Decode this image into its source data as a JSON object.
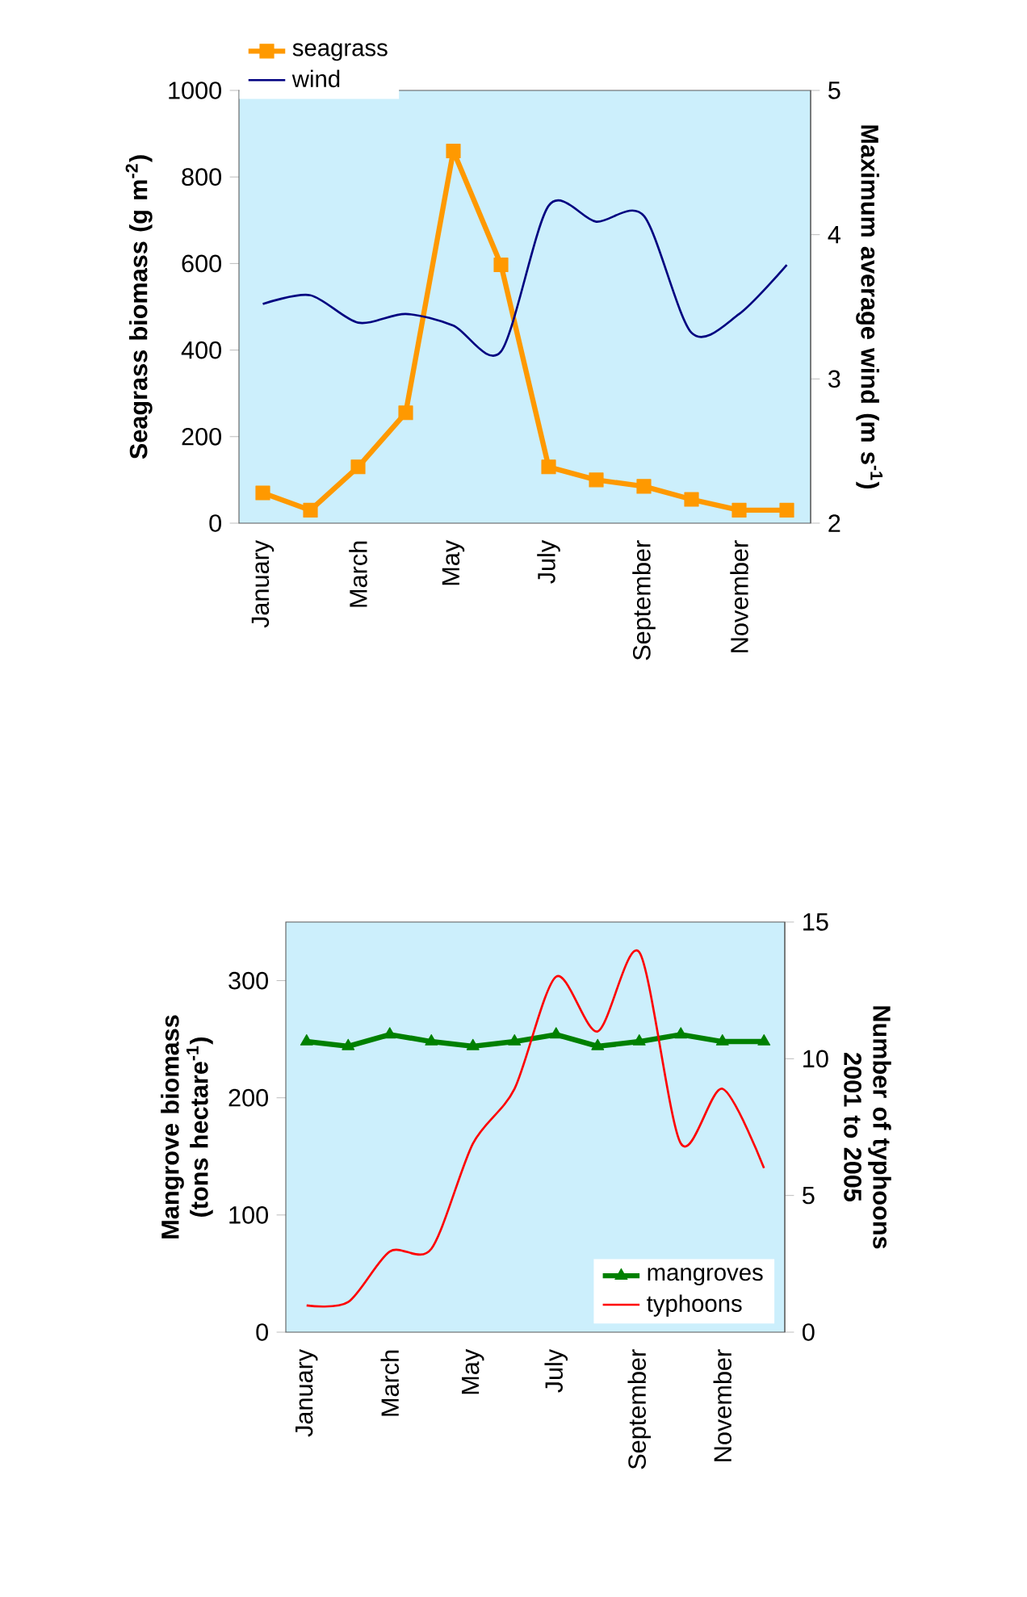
{
  "chart_data": [
    {
      "type": "line",
      "ylabel": "Seagrass biomass (g m$^{-2}$)",
      "y2label": "Maximum average wind (m s$^{-1}$)",
      "categories": [
        "January",
        null,
        "March",
        null,
        "May",
        null,
        "July",
        null,
        "September",
        null,
        "November",
        null
      ],
      "ylim": [
        0,
        1000
      ],
      "yticks": [
        0,
        200,
        400,
        600,
        800,
        1000
      ],
      "y2lim": [
        2,
        5
      ],
      "y2ticks": [
        2,
        3,
        4,
        5
      ],
      "legend": "top left",
      "series": [
        {
          "name": "seagrass",
          "color": "#ff9900",
          "marker": "square",
          "values": [
            70,
            30,
            130,
            255,
            860,
            597,
            130,
            100,
            85,
            55,
            30,
            30
          ]
        },
        {
          "name": "wind",
          "color": "#000080",
          "marker": "none",
          "axis": "y2",
          "values": [
            3.52,
            3.58,
            3.39,
            3.45,
            3.37,
            3.19,
            4.2,
            4.09,
            4.13,
            3.32,
            3.45,
            3.79
          ]
        }
      ]
    },
    {
      "type": "line",
      "ylabel": "Mangrove biomass (tons hectare$^{-1}$)",
      "y2label": "Number of typhoons 2001 to 2005",
      "categories": [
        "January",
        null,
        "March",
        null,
        "May",
        null,
        "July",
        null,
        "September",
        null,
        "November",
        null
      ],
      "ylim": [
        0,
        350
      ],
      "yticks": [
        0,
        100,
        200,
        300
      ],
      "y2lim": [
        0,
        15
      ],
      "y2ticks": [
        0,
        5,
        10,
        15
      ],
      "legend": "bottom right",
      "series": [
        {
          "name": "mangroves",
          "color": "#008000",
          "marker": "triangle",
          "values": [
            248,
            244,
            254,
            248,
            244,
            248,
            254,
            244,
            248,
            254,
            248,
            248
          ]
        },
        {
          "name": "typhoons",
          "color": "#ff0000",
          "marker": "none",
          "axis": "y2",
          "values": [
            0.98,
            1.1,
            2.95,
            3.05,
            6.9,
            8.9,
            13.0,
            11.0,
            13.9,
            6.9,
            8.9,
            6.0
          ]
        }
      ]
    }
  ]
}
